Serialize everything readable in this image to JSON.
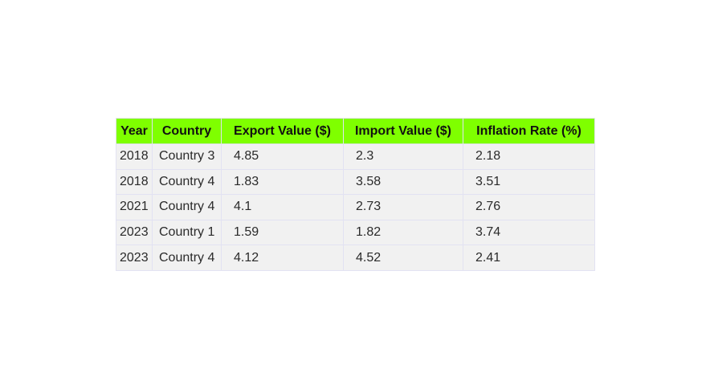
{
  "chart_data": {
    "type": "table",
    "columns": [
      "Year",
      "Country",
      "Export Value ($)",
      "Import Value ($)",
      "Inflation Rate (%)"
    ],
    "rows": [
      [
        "2018",
        "Country 3",
        "4.85",
        "2.3",
        "2.18"
      ],
      [
        "2018",
        "Country 4",
        "1.83",
        "3.58",
        "3.51"
      ],
      [
        "2021",
        "Country 4",
        "4.1",
        "2.73",
        "2.76"
      ],
      [
        "2023",
        "Country 1",
        "1.59",
        "1.82",
        "3.74"
      ],
      [
        "2023",
        "Country 4",
        "4.12",
        "4.52",
        "2.41"
      ]
    ],
    "header_color": "#7fff00",
    "cell_color": "#f1f1f1",
    "border_color": "#e2e2f2"
  }
}
